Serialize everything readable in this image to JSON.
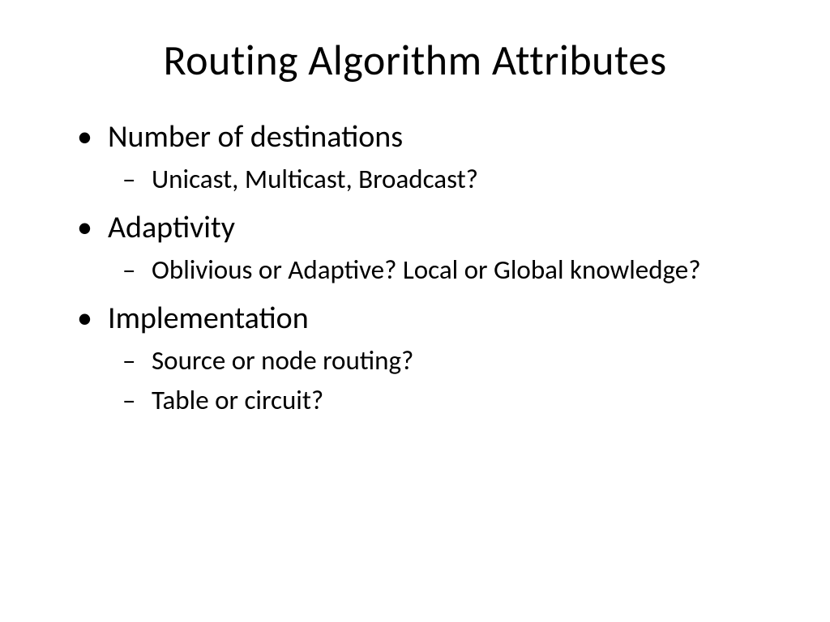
{
  "slide": {
    "title": "Routing Algorithm Attributes",
    "bullets": [
      {
        "text": "Number of destinations",
        "sub": [
          "Unicast, Multicast, Broadcast?"
        ]
      },
      {
        "text": "Adaptivity",
        "sub": [
          "Oblivious or Adaptive?  Local or Global knowledge?"
        ]
      },
      {
        "text": "Implementation",
        "sub": [
          "Source or node routing?",
          "Table or circuit?"
        ]
      }
    ],
    "style": {
      "background_color": "#ffffff",
      "text_color": "#000000",
      "title_fontsize": 52,
      "level1_fontsize": 38,
      "level2_fontsize": 33,
      "font_family": "Calibri"
    }
  }
}
